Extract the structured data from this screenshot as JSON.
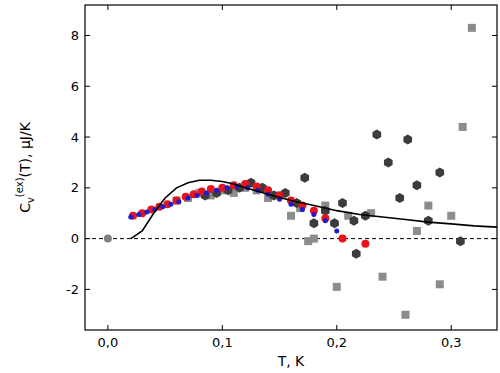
{
  "chart_data": {
    "type": "scatter",
    "xlabel": "T, K",
    "ylabel": {
      "base": "C",
      "sub": "v",
      "sup": "(ex)",
      "rest": "(T), μJ/K"
    },
    "xlim": [
      -0.02,
      0.34
    ],
    "ylim": [
      -3.6,
      9.2
    ],
    "xticks": [
      {
        "value": 0,
        "label": "0,0"
      },
      {
        "value": 0.1,
        "label": "0,1"
      },
      {
        "value": 0.2,
        "label": "0,2"
      },
      {
        "value": 0.3,
        "label": "0,3"
      }
    ],
    "yticks": [
      -2,
      0,
      2,
      4,
      6,
      8
    ],
    "grid": false,
    "reference_lines": [
      {
        "value": 0,
        "line_style": "dashed"
      }
    ],
    "series": [
      {
        "type": "scatter",
        "marker": "square",
        "color": "#8c8c8c",
        "x": [
          0.06,
          0.07,
          0.08,
          0.09,
          0.1,
          0.11,
          0.12,
          0.13,
          0.14,
          0.15,
          0.16,
          0.168,
          0.175,
          0.18,
          0.19,
          0.2,
          0.21,
          0.23,
          0.24,
          0.26,
          0.27,
          0.28,
          0.29,
          0.3,
          0.31,
          0.318
        ],
        "values": [
          1.5,
          1.6,
          1.8,
          1.7,
          1.9,
          1.8,
          2.0,
          1.9,
          1.6,
          1.7,
          0.9,
          1.2,
          -0.1,
          0.0,
          1.3,
          -1.9,
          0.9,
          1.0,
          -1.5,
          -3.0,
          0.3,
          1.3,
          -1.8,
          0.9,
          4.4,
          8.3
        ]
      },
      {
        "type": "scatter",
        "marker": "hexagon",
        "color": "#3c3c3c",
        "x": [
          0.085,
          0.095,
          0.105,
          0.115,
          0.125,
          0.135,
          0.145,
          0.155,
          0.165,
          0.172,
          0.18,
          0.19,
          0.198,
          0.205,
          0.215,
          0.217,
          0.225,
          0.235,
          0.245,
          0.255,
          0.262,
          0.27,
          0.28,
          0.29,
          0.308
        ],
        "values": [
          1.7,
          1.8,
          1.9,
          2.0,
          2.2,
          2.0,
          1.7,
          1.8,
          1.4,
          2.4,
          0.6,
          1.1,
          0.6,
          1.4,
          0.7,
          -0.6,
          0.9,
          4.1,
          3.0,
          1.6,
          3.9,
          2.1,
          0.7,
          2.6,
          -0.1
        ]
      },
      {
        "type": "scatter",
        "marker": "circle",
        "color": "#e8141c",
        "x": [
          0.022,
          0.03,
          0.038,
          0.045,
          0.052,
          0.06,
          0.068,
          0.075,
          0.082,
          0.09,
          0.1,
          0.11,
          0.12,
          0.13,
          0.14,
          0.15,
          0.16,
          0.17,
          0.18,
          0.19,
          0.205,
          0.225
        ],
        "values": [
          0.9,
          1.0,
          1.15,
          1.25,
          1.35,
          1.5,
          1.65,
          1.75,
          1.85,
          1.95,
          2.0,
          2.1,
          2.15,
          2.05,
          1.9,
          1.7,
          1.5,
          1.3,
          1.1,
          0.8,
          0.0,
          -0.2
        ]
      },
      {
        "type": "scatter",
        "marker": "dot",
        "color": "#1c1cd0",
        "x": [
          0.02,
          0.027,
          0.034,
          0.041,
          0.048,
          0.055,
          0.062,
          0.07,
          0.078,
          0.086,
          0.095,
          0.104,
          0.113,
          0.122,
          0.131,
          0.14,
          0.15,
          0.16,
          0.17,
          0.18,
          0.19,
          0.2
        ],
        "values": [
          0.85,
          0.95,
          1.05,
          1.15,
          1.25,
          1.35,
          1.45,
          1.6,
          1.7,
          1.8,
          1.9,
          2.0,
          2.05,
          2.0,
          1.9,
          1.75,
          1.55,
          1.35,
          1.15,
          0.95,
          0.7,
          0.3
        ]
      },
      {
        "type": "scatter",
        "marker": "circle",
        "color": "#808080",
        "x": [
          0
        ],
        "values": [
          0
        ]
      },
      {
        "type": "line",
        "line_style": "solid",
        "color": "#000000",
        "x": [
          0.02,
          0.03,
          0.04,
          0.05,
          0.06,
          0.07,
          0.08,
          0.09,
          0.1,
          0.11,
          0.12,
          0.14,
          0.16,
          0.18,
          0.2,
          0.22,
          0.24,
          0.26,
          0.28,
          0.3,
          0.32,
          0.34
        ],
        "values": [
          0.0,
          0.3,
          1.0,
          1.6,
          2.0,
          2.2,
          2.3,
          2.3,
          2.25,
          2.15,
          2.0,
          1.75,
          1.5,
          1.3,
          1.1,
          0.95,
          0.85,
          0.75,
          0.65,
          0.58,
          0.5,
          0.45
        ]
      }
    ]
  }
}
